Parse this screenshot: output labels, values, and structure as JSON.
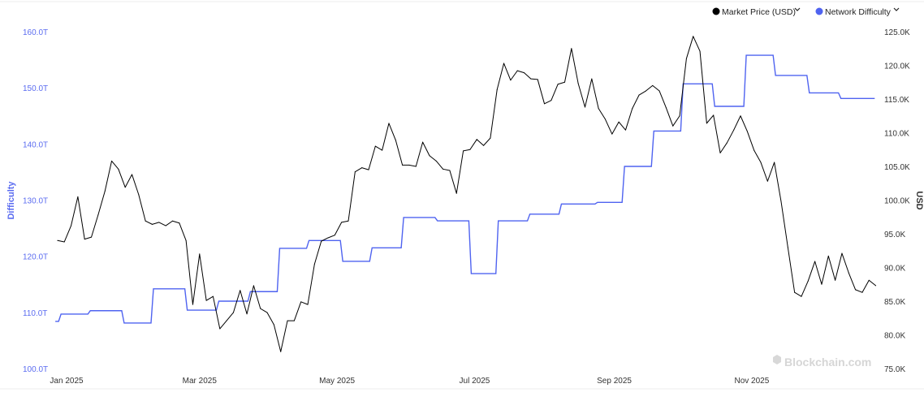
{
  "chart_data": {
    "type": "line",
    "watermark": "Blockchain.com",
    "legend": {
      "placement": "top-right"
    },
    "grid": false,
    "x": {
      "ticks": [
        "Jan 2025",
        "Mar 2025",
        "May 2025",
        "Jul 2025",
        "Sep 2025",
        "Nov 2025"
      ],
      "tick_dates": [
        "2025-01-01",
        "2025-03-01",
        "2025-05-01",
        "2025-07-01",
        "2025-09-01",
        "2025-11-01"
      ]
    },
    "y_left": {
      "label": "Difficulty",
      "unit": "T",
      "range": [
        100,
        160
      ],
      "ticks": [
        "100.0T",
        "110.0T",
        "120.0T",
        "130.0T",
        "140.0T",
        "150.0T",
        "160.0T"
      ]
    },
    "y_right": {
      "label": "USD",
      "unit": "K",
      "range": [
        75,
        125
      ],
      "ticks": [
        "75.0K",
        "80.0K",
        "85.0K",
        "90.0K",
        "95.0K",
        "100.0K",
        "105.0K",
        "110.0K",
        "115.0K",
        "120.0K",
        "125.0K"
      ]
    },
    "series": [
      {
        "name": "Market Price (USD)",
        "axis": "right",
        "color": "#000000",
        "unit": "thousand USD",
        "points": [
          [
            "2024-12-28",
            94.0
          ],
          [
            "2024-12-31",
            93.8
          ],
          [
            "2025-01-03",
            96.2
          ],
          [
            "2025-01-06",
            100.5
          ],
          [
            "2025-01-09",
            94.2
          ],
          [
            "2025-01-12",
            94.5
          ],
          [
            "2025-01-15",
            97.8
          ],
          [
            "2025-01-18",
            101.3
          ],
          [
            "2025-01-21",
            105.8
          ],
          [
            "2025-01-24",
            104.6
          ],
          [
            "2025-01-27",
            101.9
          ],
          [
            "2025-01-30",
            103.8
          ],
          [
            "2025-02-02",
            100.8
          ],
          [
            "2025-02-05",
            96.9
          ],
          [
            "2025-02-08",
            96.4
          ],
          [
            "2025-02-11",
            96.7
          ],
          [
            "2025-02-14",
            96.2
          ],
          [
            "2025-02-17",
            96.9
          ],
          [
            "2025-02-20",
            96.6
          ],
          [
            "2025-02-23",
            94.0
          ],
          [
            "2025-02-26",
            84.5
          ],
          [
            "2025-03-01",
            92.0
          ],
          [
            "2025-03-04",
            85.1
          ],
          [
            "2025-03-07",
            85.7
          ],
          [
            "2025-03-10",
            80.9
          ],
          [
            "2025-03-13",
            82.1
          ],
          [
            "2025-03-16",
            83.3
          ],
          [
            "2025-03-19",
            86.6
          ],
          [
            "2025-03-22",
            83.1
          ],
          [
            "2025-03-25",
            87.3
          ],
          [
            "2025-03-28",
            83.9
          ],
          [
            "2025-03-31",
            83.3
          ],
          [
            "2025-04-03",
            81.5
          ],
          [
            "2025-04-06",
            77.5
          ],
          [
            "2025-04-09",
            82.1
          ],
          [
            "2025-04-12",
            82.1
          ],
          [
            "2025-04-15",
            84.9
          ],
          [
            "2025-04-18",
            84.5
          ],
          [
            "2025-04-21",
            90.5
          ],
          [
            "2025-04-24",
            93.9
          ],
          [
            "2025-04-27",
            94.4
          ],
          [
            "2025-04-30",
            94.8
          ],
          [
            "2025-05-03",
            96.7
          ],
          [
            "2025-05-06",
            96.9
          ],
          [
            "2025-05-09",
            104.2
          ],
          [
            "2025-05-12",
            104.8
          ],
          [
            "2025-05-15",
            104.5
          ],
          [
            "2025-05-18",
            108.0
          ],
          [
            "2025-05-21",
            107.4
          ],
          [
            "2025-05-24",
            111.4
          ],
          [
            "2025-05-27",
            108.9
          ],
          [
            "2025-05-30",
            105.2
          ],
          [
            "2025-06-02",
            105.2
          ],
          [
            "2025-06-05",
            105.0
          ],
          [
            "2025-06-08",
            108.6
          ],
          [
            "2025-06-11",
            106.6
          ],
          [
            "2025-06-14",
            105.8
          ],
          [
            "2025-06-17",
            104.6
          ],
          [
            "2025-06-20",
            104.4
          ],
          [
            "2025-06-23",
            101.0
          ],
          [
            "2025-06-26",
            107.3
          ],
          [
            "2025-06-29",
            107.5
          ],
          [
            "2025-07-02",
            109.0
          ],
          [
            "2025-07-05",
            108.1
          ],
          [
            "2025-07-08",
            109.2
          ],
          [
            "2025-07-11",
            116.4
          ],
          [
            "2025-07-14",
            120.3
          ],
          [
            "2025-07-17",
            117.8
          ],
          [
            "2025-07-20",
            119.2
          ],
          [
            "2025-07-23",
            118.9
          ],
          [
            "2025-07-26",
            118.0
          ],
          [
            "2025-07-29",
            117.9
          ],
          [
            "2025-08-01",
            114.3
          ],
          [
            "2025-08-04",
            114.8
          ],
          [
            "2025-08-07",
            117.2
          ],
          [
            "2025-08-10",
            117.5
          ],
          [
            "2025-08-13",
            122.5
          ],
          [
            "2025-08-16",
            117.3
          ],
          [
            "2025-08-19",
            113.8
          ],
          [
            "2025-08-22",
            118.0
          ],
          [
            "2025-08-25",
            113.6
          ],
          [
            "2025-08-28",
            112.0
          ],
          [
            "2025-08-31",
            109.8
          ],
          [
            "2025-09-03",
            111.6
          ],
          [
            "2025-09-06",
            110.4
          ],
          [
            "2025-09-09",
            113.6
          ],
          [
            "2025-09-12",
            115.6
          ],
          [
            "2025-09-15",
            116.2
          ],
          [
            "2025-09-18",
            117.0
          ],
          [
            "2025-09-21",
            116.2
          ],
          [
            "2025-09-24",
            113.7
          ],
          [
            "2025-09-27",
            111.0
          ],
          [
            "2025-09-30",
            112.5
          ],
          [
            "2025-10-03",
            121.0
          ],
          [
            "2025-10-06",
            124.3
          ],
          [
            "2025-10-09",
            122.1
          ],
          [
            "2025-10-12",
            111.4
          ],
          [
            "2025-10-15",
            112.6
          ],
          [
            "2025-10-18",
            107.0
          ],
          [
            "2025-10-21",
            108.5
          ],
          [
            "2025-10-24",
            110.4
          ],
          [
            "2025-10-27",
            112.5
          ],
          [
            "2025-10-30",
            110.2
          ],
          [
            "2025-11-02",
            107.4
          ],
          [
            "2025-11-05",
            105.6
          ],
          [
            "2025-11-08",
            102.8
          ],
          [
            "2025-11-11",
            105.6
          ],
          [
            "2025-11-14",
            99.8
          ],
          [
            "2025-11-17",
            93.0
          ],
          [
            "2025-11-20",
            86.3
          ],
          [
            "2025-11-23",
            85.7
          ],
          [
            "2025-11-26",
            88.0
          ],
          [
            "2025-11-29",
            90.9
          ],
          [
            "2025-12-02",
            87.5
          ],
          [
            "2025-12-05",
            91.7
          ],
          [
            "2025-12-08",
            88.1
          ],
          [
            "2025-12-11",
            92.1
          ],
          [
            "2025-12-14",
            89.2
          ],
          [
            "2025-12-17",
            86.7
          ],
          [
            "2025-12-20",
            86.3
          ],
          [
            "2025-12-23",
            88.1
          ],
          [
            "2025-12-26",
            87.3
          ]
        ]
      },
      {
        "name": "Network Difficulty",
        "axis": "left",
        "color": "#4f63f0",
        "unit": "T",
        "shape": "step",
        "points": [
          [
            "2024-12-27",
            108.4
          ],
          [
            "2024-12-29",
            109.7
          ],
          [
            "2025-01-11",
            110.3
          ],
          [
            "2025-01-26",
            108.1
          ],
          [
            "2025-02-08",
            114.2
          ],
          [
            "2025-02-23",
            110.4
          ],
          [
            "2025-03-09",
            112.0
          ],
          [
            "2025-03-23",
            113.7
          ],
          [
            "2025-04-05",
            121.4
          ],
          [
            "2025-04-18",
            122.8
          ],
          [
            "2025-05-03",
            119.1
          ],
          [
            "2025-05-16",
            121.5
          ],
          [
            "2025-05-30",
            126.9
          ],
          [
            "2025-06-14",
            126.3
          ],
          [
            "2025-06-29",
            116.9
          ],
          [
            "2025-07-11",
            126.3
          ],
          [
            "2025-07-25",
            127.5
          ],
          [
            "2025-08-08",
            129.3
          ],
          [
            "2025-08-24",
            129.6
          ],
          [
            "2025-09-05",
            136.0
          ],
          [
            "2025-09-18",
            142.3
          ],
          [
            "2025-10-01",
            150.7
          ],
          [
            "2025-10-15",
            146.7
          ],
          [
            "2025-10-29",
            155.8
          ],
          [
            "2025-11-11",
            152.2
          ],
          [
            "2025-11-26",
            149.1
          ],
          [
            "2025-12-10",
            148.1
          ],
          [
            "2025-12-25",
            148.1
          ]
        ]
      }
    ]
  }
}
